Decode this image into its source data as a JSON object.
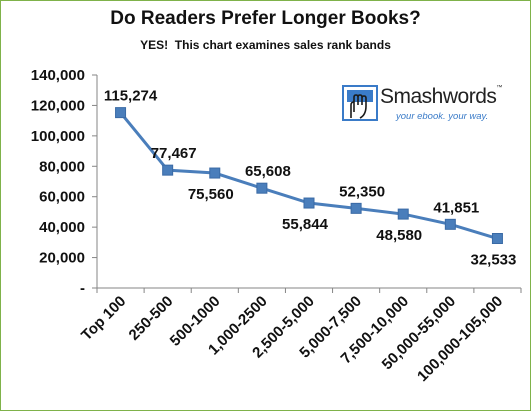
{
  "chart_data": {
    "type": "line",
    "title": "Do Readers Prefer Longer Books?",
    "subtitle": "YES!  This chart examines sales rank bands",
    "categories": [
      "Top 100",
      "250-500",
      "500-1000",
      "1,000-2500",
      "2,500-5,000",
      "5,000-7,500",
      "7,500-10,000",
      "50,000-55,000",
      "100,000-105,000"
    ],
    "series": [
      {
        "values": [
          115274,
          77467,
          75560,
          65608,
          55844,
          52350,
          48580,
          41851,
          32533
        ],
        "data_labels": [
          "115,274",
          "77,467",
          "75,560",
          "65,608",
          "55,844",
          "52,350",
          "48,580",
          "41,851",
          "32,533"
        ],
        "label_side": [
          "above",
          "above",
          "below",
          "above",
          "below",
          "above",
          "below",
          "above",
          "below"
        ]
      }
    ],
    "ylim": [
      0,
      140000
    ],
    "y_ticks": [
      0,
      20000,
      40000,
      60000,
      80000,
      100000,
      120000,
      140000
    ],
    "y_tick_labels": [
      "-",
      "20,000",
      "40,000",
      "60,000",
      "80,000",
      "100,000",
      "120,000",
      "140,000"
    ],
    "grid": false,
    "legend": "none",
    "line_color": "#4a7ebb",
    "marker_color": "#4a7ebb"
  },
  "logo": {
    "brand": "Smashwords",
    "tm": "™",
    "tagline": "your ebook. your way."
  }
}
